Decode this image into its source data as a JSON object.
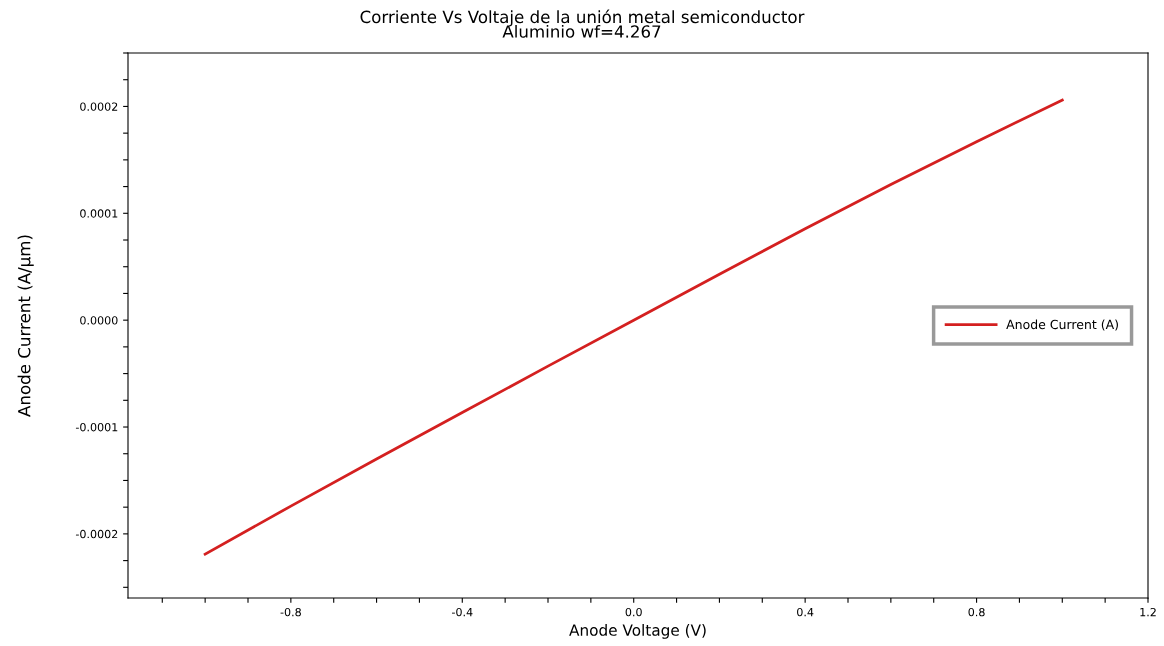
{
  "chart_data": {
    "type": "line",
    "title": "Corriente Vs Voltaje de la unión metal semiconductor",
    "subtitle": "Aluminio wf=4.267",
    "xlabel": "Anode Voltage (V)",
    "ylabel": "Anode Current (A/µm)",
    "x": [
      -1.0,
      -0.8,
      -0.6,
      -0.4,
      -0.2,
      0.0,
      0.2,
      0.4,
      0.6,
      0.8,
      1.0
    ],
    "series": [
      {
        "name": "Anode Current (A)",
        "color": "#d42020",
        "values": [
          -0.000219,
          -0.000174,
          -0.00013,
          -8.65e-05,
          -4.3e-05,
          0.0,
          4.3e-05,
          8.55e-05,
          0.000127,
          0.000167,
          0.000206
        ]
      }
    ],
    "xlim": [
      -1.18,
      1.2
    ],
    "xticks": [
      {
        "value": -1.1,
        "label": null
      },
      {
        "value": -1.0,
        "label": null
      },
      {
        "value": -0.9,
        "label": null
      },
      {
        "value": -0.8,
        "label": "-0.8"
      },
      {
        "value": -0.7,
        "label": null
      },
      {
        "value": -0.6,
        "label": null
      },
      {
        "value": -0.5,
        "label": null
      },
      {
        "value": -0.4,
        "label": "-0.4"
      },
      {
        "value": -0.3,
        "label": null
      },
      {
        "value": -0.2,
        "label": null
      },
      {
        "value": -0.1,
        "label": null
      },
      {
        "value": 0.0,
        "label": "0.0"
      },
      {
        "value": 0.1,
        "label": null
      },
      {
        "value": 0.2,
        "label": null
      },
      {
        "value": 0.3,
        "label": null
      },
      {
        "value": 0.4,
        "label": "0.4"
      },
      {
        "value": 0.5,
        "label": null
      },
      {
        "value": 0.6,
        "label": null
      },
      {
        "value": 0.7,
        "label": null
      },
      {
        "value": 0.8,
        "label": "0.8"
      },
      {
        "value": 0.9,
        "label": null
      },
      {
        "value": 1.0,
        "label": null
      },
      {
        "value": 1.1,
        "label": null
      },
      {
        "value": 1.2,
        "label": "1.2"
      }
    ],
    "ylim": [
      -0.00026,
      0.00025
    ],
    "yticks": [
      {
        "value": -0.00025,
        "label": null
      },
      {
        "value": -0.000225,
        "label": null
      },
      {
        "value": -0.0002,
        "label": "-0.0002"
      },
      {
        "value": -0.000175,
        "label": null
      },
      {
        "value": -0.00015,
        "label": null
      },
      {
        "value": -0.000125,
        "label": null
      },
      {
        "value": -0.0001,
        "label": "-0.0001"
      },
      {
        "value": -7.5e-05,
        "label": null
      },
      {
        "value": -5e-05,
        "label": null
      },
      {
        "value": -2.5e-05,
        "label": null
      },
      {
        "value": 0.0,
        "label": "0.0000"
      },
      {
        "value": 2.5e-05,
        "label": null
      },
      {
        "value": 5e-05,
        "label": null
      },
      {
        "value": 7.5e-05,
        "label": null
      },
      {
        "value": 0.0001,
        "label": "0.0001"
      },
      {
        "value": 0.000125,
        "label": null
      },
      {
        "value": 0.00015,
        "label": null
      },
      {
        "value": 0.000175,
        "label": null
      },
      {
        "value": 0.0002,
        "label": "0.0002"
      },
      {
        "value": 0.000225,
        "label": null
      },
      {
        "value": 0.00025,
        "label": null
      }
    ],
    "grid": false,
    "legend": "right",
    "marker": "none",
    "line_style": "solid"
  }
}
